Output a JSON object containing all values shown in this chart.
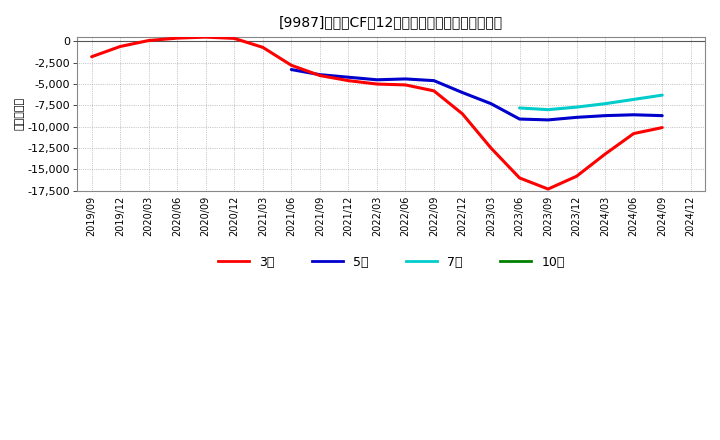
{
  "title": "[9987]　投賄CFの12か月移動合計の平均値の推移",
  "ylabel": "（百万円）",
  "background_color": "#ffffff",
  "plot_bg_color": "#ffffff",
  "grid_color": "#999999",
  "ylim": [
    -17500,
    500
  ],
  "yticks": [
    0,
    -2500,
    -5000,
    -7500,
    -10000,
    -12500,
    -15000,
    -17500
  ],
  "series": {
    "3year": {
      "color": "#ff0000",
      "label": "3年",
      "x": [
        "2019/09",
        "2019/12",
        "2020/03",
        "2020/06",
        "2020/09",
        "2020/12",
        "2021/03",
        "2021/06",
        "2021/09",
        "2021/12",
        "2022/03",
        "2022/06",
        "2022/09",
        "2022/12",
        "2023/03",
        "2023/06",
        "2023/09",
        "2023/12",
        "2024/03",
        "2024/06",
        "2024/09"
      ],
      "y": [
        -1800,
        -600,
        100,
        380,
        500,
        350,
        -700,
        -2800,
        -4000,
        -4600,
        -5000,
        -5100,
        -5800,
        -8500,
        -12500,
        -16000,
        -17300,
        -15800,
        -13200,
        -10800,
        -10100
      ]
    },
    "5year": {
      "color": "#0000cc",
      "label": "5年",
      "x": [
        "2021/06",
        "2021/09",
        "2021/12",
        "2022/03",
        "2022/06",
        "2022/09",
        "2022/12",
        "2023/03",
        "2023/06",
        "2023/09",
        "2023/12",
        "2024/03",
        "2024/06",
        "2024/09"
      ],
      "y": [
        -3300,
        -3900,
        -4200,
        -4500,
        -4400,
        -4600,
        -6000,
        -7300,
        -9100,
        -9200,
        -8900,
        -8700,
        -8600,
        -8700
      ]
    },
    "7year": {
      "color": "#00cccc",
      "label": "7年",
      "x": [
        "2023/06",
        "2023/09",
        "2023/12",
        "2024/03",
        "2024/06",
        "2024/09"
      ],
      "y": [
        -7800,
        -8000,
        -7700,
        -7300,
        -6800,
        -6300
      ]
    },
    "10year": {
      "color": "#008000",
      "label": "10年",
      "x": [],
      "y": []
    }
  },
  "xtick_labels": [
    "2019/09",
    "2019/12",
    "2020/03",
    "2020/06",
    "2020/09",
    "2020/12",
    "2021/03",
    "2021/06",
    "2021/09",
    "2021/12",
    "2022/03",
    "2022/06",
    "2022/09",
    "2022/12",
    "2023/03",
    "2023/06",
    "2023/09",
    "2023/12",
    "2024/03",
    "2024/06",
    "2024/09",
    "2024/12"
  ]
}
